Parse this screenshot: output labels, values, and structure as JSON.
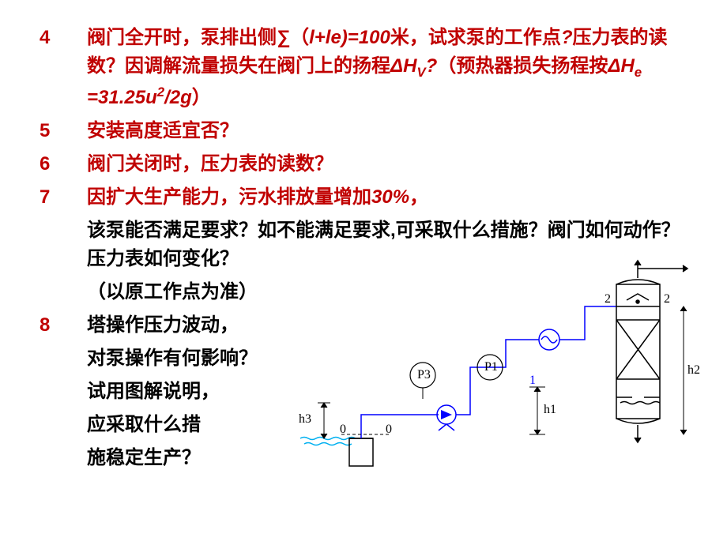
{
  "items": [
    {
      "num": "4",
      "cls": "",
      "text": "阀门全开时，泵排出侧∑（l+le)=100米，试求泵的工作点?压力表的读数？因调解流量损失在阀门上的扬程ΔHV?（预热器损失扬程按ΔHe =31.25u2/2g）"
    },
    {
      "num": "5",
      "cls": "",
      "text": "安装高度适宜否？"
    },
    {
      "num": "6",
      "cls": "",
      "text": "阀门关闭时，压力表的读数？"
    },
    {
      "num": "7",
      "cls": "",
      "text": "因扩大生产能力，污水排放量增加30%，"
    },
    {
      "num": "",
      "cls": "blk",
      "text": "该泵能否满足要求？如不能满足要求,可采取什么措施？阀门如何动作？压力表如何变化？"
    },
    {
      "num": "",
      "cls": "blk",
      "text": "（以原工作点为准）"
    },
    {
      "num": "8",
      "cls": "blk",
      "text": "塔操作压力波动，"
    },
    {
      "num": "",
      "cls": "blk",
      "text": "对泵操作有何影响？"
    },
    {
      "num": "",
      "cls": "blk",
      "text": "试用图解说明，"
    },
    {
      "num": "",
      "cls": "blk",
      "text": "应采取什么措"
    },
    {
      "num": "",
      "cls": "blk",
      "text": "施稳定生产？"
    }
  ],
  "item4_html": "阀门全开时，泵排出侧<span class='ascii'>∑</span>（<span class='ascii'>l+le)=100</span>米，试求泵的工作点<span class='ascii'>?</span>压力表的读数？因调解流量损失在阀门上的扬程<span class='ascii'>ΔH<span class='sub'>V</span>?</span>（预热器损失扬程按<span class='ascii'>ΔH<span class='sub'>e</span> =31.25u<span class='sup'>2</span>/2g</span>）",
  "item7_html": "因扩大生产能力，污水排放量增加<span class='ascii'>30%</span>，",
  "diagram": {
    "labels": {
      "P3": "P3",
      "P1": "P1",
      "h1": "h1",
      "h2": "h2",
      "h3": "h3",
      "zero_left": "0",
      "zero_right": "0",
      "one": "1",
      "two_left": "2",
      "two_right": "2"
    },
    "colors": {
      "line": "#000000",
      "pipe": "#0000ff",
      "water": "#00b0f0"
    }
  }
}
